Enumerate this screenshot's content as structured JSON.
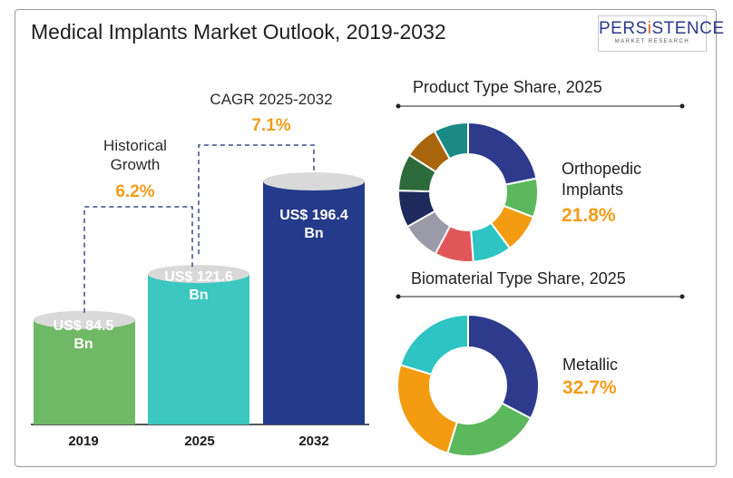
{
  "title": "Medical Implants Market Outlook, 2019-2032",
  "logo": {
    "brand_a": "PERS",
    "brand_i": "i",
    "brand_b": "STENCE",
    "sub": "MARKET RESEARCH"
  },
  "chart_data": [
    {
      "type": "bar",
      "categories": [
        "2019",
        "2025",
        "2032"
      ],
      "values": [
        84.5,
        121.6,
        196.4
      ],
      "value_labels": [
        "US$ 84.5 Bn",
        "US$ 121.6 Bn",
        "US$ 196.4 Bn"
      ],
      "colors": [
        "#6fb865",
        "#3cc7c0",
        "#243a8a"
      ],
      "annotations": [
        {
          "label": "Historical Growth",
          "value": "6.2%"
        },
        {
          "label": "CAGR 2025-2032",
          "value": "7.1%"
        }
      ]
    },
    {
      "type": "pie",
      "title": "Product Type Share, 2025",
      "highlight_label": "Orthopedic Implants",
      "highlight_value": "21.8%",
      "slices": [
        {
          "value": 21.8,
          "color": "#2e3a8c"
        },
        {
          "value": 9.0,
          "color": "#5cb85c"
        },
        {
          "value": 9.0,
          "color": "#f39c12"
        },
        {
          "value": 9.0,
          "color": "#2ec4c4"
        },
        {
          "value": 9.0,
          "color": "#e15759"
        },
        {
          "value": 9.0,
          "color": "#9a9aa8"
        },
        {
          "value": 8.6,
          "color": "#1f2a5c"
        },
        {
          "value": 8.6,
          "color": "#2e6b3a"
        },
        {
          "value": 8.0,
          "color": "#a9650c"
        },
        {
          "value": 8.0,
          "color": "#1a8a86"
        }
      ]
    },
    {
      "type": "pie",
      "title": "Biomaterial Type Share, 2025",
      "highlight_label": "Metallic",
      "highlight_value": "32.7%",
      "slices": [
        {
          "value": 32.7,
          "color": "#2e3a8c"
        },
        {
          "value": 22.0,
          "color": "#5cb85c"
        },
        {
          "value": 25.0,
          "color": "#f39c12"
        },
        {
          "value": 20.3,
          "color": "#2ec4c4"
        }
      ]
    }
  ]
}
